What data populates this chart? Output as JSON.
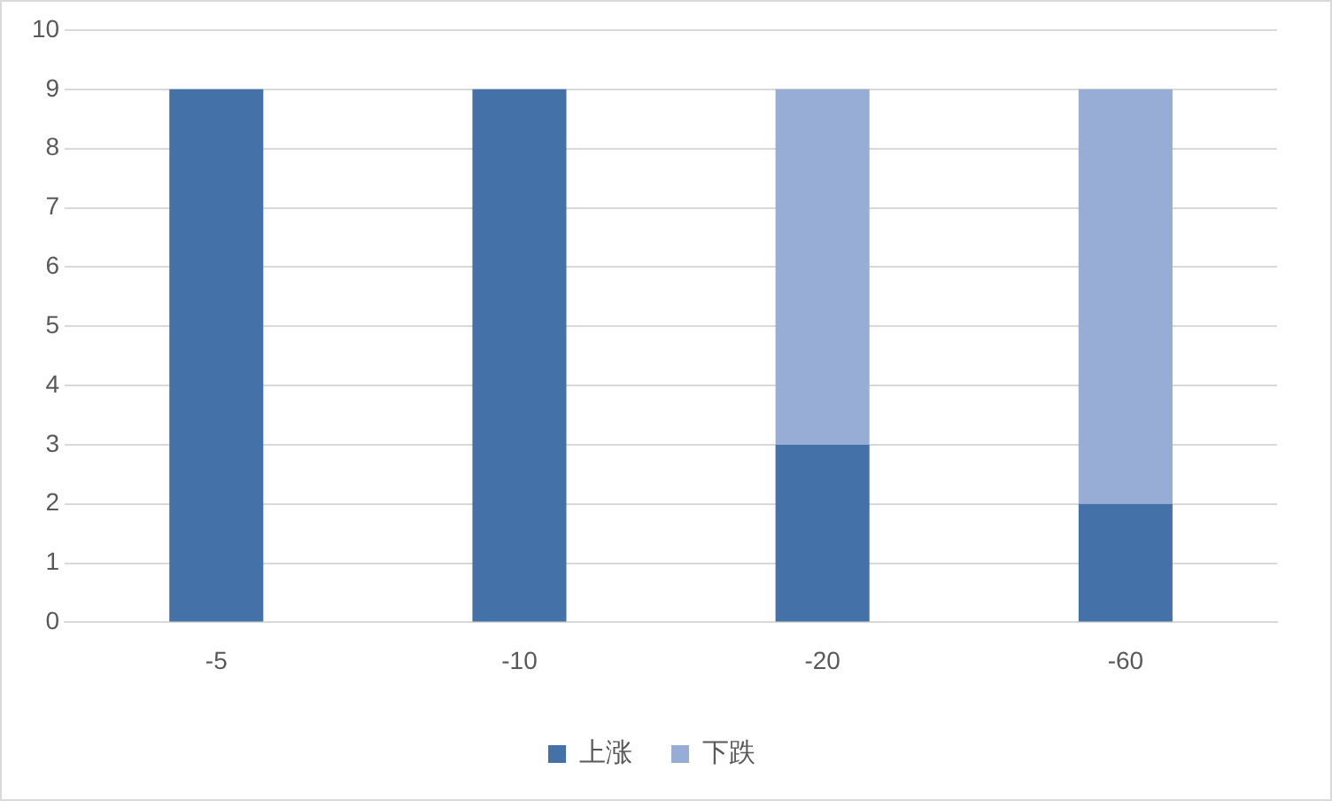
{
  "chart_data": {
    "type": "bar",
    "stacked": true,
    "categories": [
      "-5",
      "-10",
      "-20",
      "-60"
    ],
    "series": [
      {
        "name": "上涨",
        "color": "#4472a8",
        "values": [
          9,
          9,
          3,
          2
        ]
      },
      {
        "name": "下跌",
        "color": "#98add5",
        "values": [
          0,
          0,
          6,
          7
        ]
      }
    ],
    "ylim": [
      0,
      10
    ],
    "yticks": [
      0,
      1,
      2,
      3,
      4,
      5,
      6,
      7,
      8,
      9,
      10
    ],
    "grid": "y",
    "legend": "bottom"
  }
}
